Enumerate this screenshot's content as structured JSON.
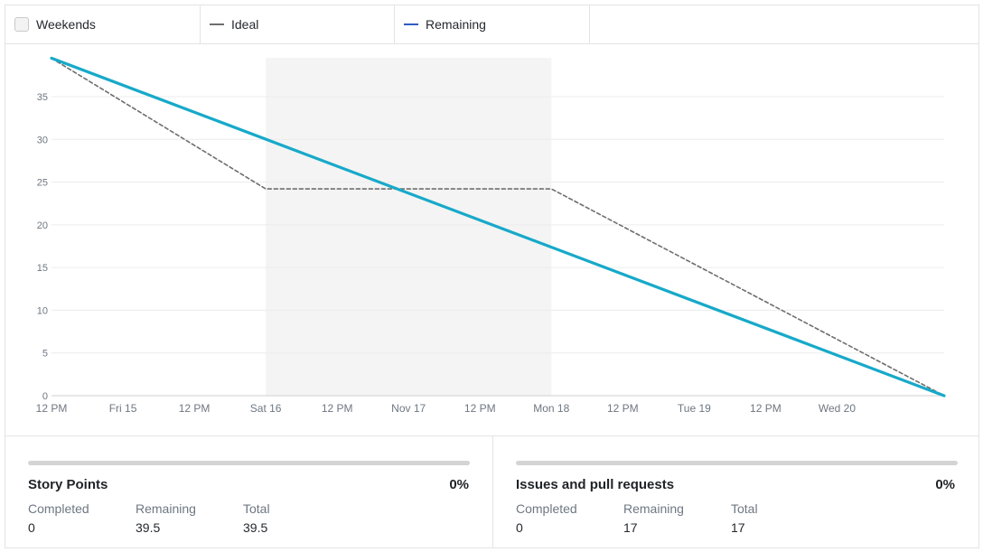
{
  "legend": {
    "weekends_label": "Weekends",
    "ideal_label": "Ideal",
    "remaining_label": "Remaining",
    "ideal_color": "#6e6e6e",
    "remaining_color": "#2f5cc2",
    "weekends_checked": false
  },
  "chart_data": {
    "type": "line",
    "title": "",
    "xlabel": "",
    "ylabel": "",
    "ylim": [
      0,
      35
    ],
    "yticks": [
      "0",
      "5",
      "10",
      "15",
      "20",
      "25",
      "30",
      "35"
    ],
    "xlim": [
      "2024-11-14 12:00",
      "2024-11-20 18:00"
    ],
    "xticks": [
      {
        "label": "12 PM",
        "t": "2024-11-14 12:00"
      },
      {
        "label": "Fri 15",
        "t": "2024-11-15 00:00"
      },
      {
        "label": "12 PM",
        "t": "2024-11-15 12:00"
      },
      {
        "label": "Sat 16",
        "t": "2024-11-16 00:00"
      },
      {
        "label": "12 PM",
        "t": "2024-11-16 12:00"
      },
      {
        "label": "Nov 17",
        "t": "2024-11-17 00:00"
      },
      {
        "label": "12 PM",
        "t": "2024-11-17 12:00"
      },
      {
        "label": "Mon 18",
        "t": "2024-11-18 00:00"
      },
      {
        "label": "12 PM",
        "t": "2024-11-18 12:00"
      },
      {
        "label": "Tue 19",
        "t": "2024-11-19 00:00"
      },
      {
        "label": "12 PM",
        "t": "2024-11-19 12:00"
      },
      {
        "label": "Wed 20",
        "t": "2024-11-20 00:00"
      }
    ],
    "weekend_band": {
      "start": "2024-11-16 00:00",
      "end": "2024-11-18 00:00",
      "color": "#f4f4f4"
    },
    "grid": true,
    "series": [
      {
        "name": "Ideal",
        "color": "#6e6e6e",
        "dashed": true,
        "points": [
          {
            "t": "2024-11-14 12:00",
            "y": 39.5
          },
          {
            "t": "2024-11-16 00:00",
            "y": 24.2
          },
          {
            "t": "2024-11-18 00:00",
            "y": 24.2
          },
          {
            "t": "2024-11-20 18:00",
            "y": 0
          }
        ]
      },
      {
        "name": "Remaining",
        "color": "#17a9c9",
        "dashed": false,
        "points": [
          {
            "t": "2024-11-14 12:00",
            "y": 39.5
          },
          {
            "t": "2024-11-20 18:00",
            "y": 0
          }
        ]
      }
    ]
  },
  "stats": {
    "story_points": {
      "title": "Story Points",
      "percent": "0%",
      "progress": 0,
      "completed_label": "Completed",
      "completed": "0",
      "remaining_label": "Remaining",
      "remaining": "39.5",
      "total_label": "Total",
      "total": "39.5"
    },
    "issues": {
      "title": "Issues and pull requests",
      "percent": "0%",
      "progress": 0,
      "completed_label": "Completed",
      "completed": "0",
      "remaining_label": "Remaining",
      "remaining": "17",
      "total_label": "Total",
      "total": "17"
    }
  }
}
